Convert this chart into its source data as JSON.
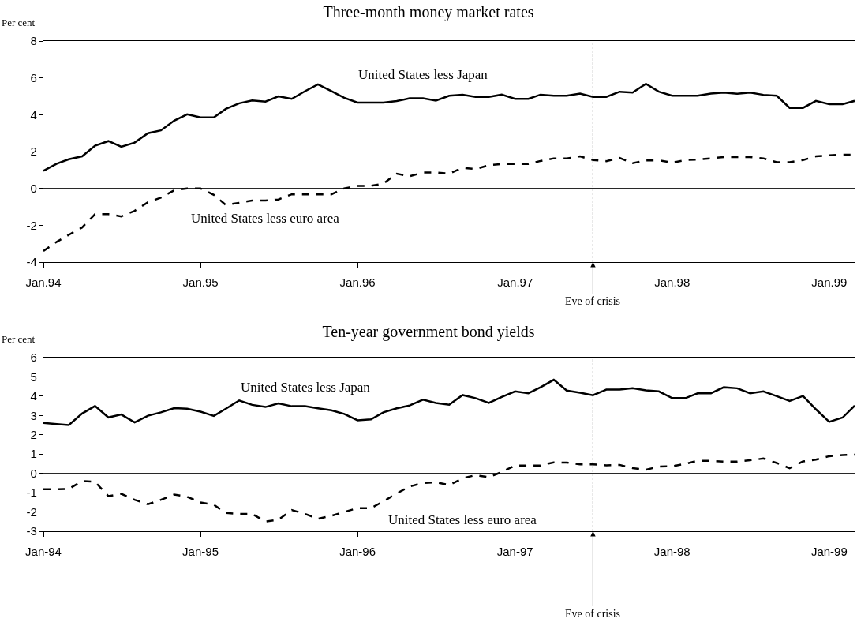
{
  "chart_data": [
    {
      "type": "line",
      "title": "Three-month money market rates",
      "ylabel": "Per cent",
      "x": [
        "1994-01",
        "1994-02",
        "1994-03",
        "1994-04",
        "1994-05",
        "1994-06",
        "1994-07",
        "1994-08",
        "1994-09",
        "1994-10",
        "1994-11",
        "1994-12",
        "1995-01",
        "1995-02",
        "1995-03",
        "1995-04",
        "1995-05",
        "1995-06",
        "1995-07",
        "1995-08",
        "1995-09",
        "1995-10",
        "1995-11",
        "1995-12",
        "1996-01",
        "1996-02",
        "1996-03",
        "1996-04",
        "1996-05",
        "1996-06",
        "1996-07",
        "1996-08",
        "1996-09",
        "1996-10",
        "1996-11",
        "1996-12",
        "1997-01",
        "1997-02",
        "1997-03",
        "1997-04",
        "1997-05",
        "1997-06",
        "1997-07",
        "1997-08",
        "1997-09",
        "1997-10",
        "1997-11",
        "1997-12",
        "1998-01",
        "1998-02",
        "1998-03",
        "1998-04",
        "1998-05",
        "1998-06",
        "1998-07",
        "1998-08",
        "1998-09",
        "1998-10",
        "1998-11",
        "1998-12",
        "1999-01",
        "1999-02",
        "1999-03"
      ],
      "series": [
        {
          "name": "United States less Japan",
          "color": "#000000",
          "line_style": "solid",
          "values": [
            0.95,
            1.34,
            1.58,
            1.74,
            2.32,
            2.57,
            2.26,
            2.49,
            3.0,
            3.15,
            3.68,
            4.02,
            3.85,
            3.85,
            4.32,
            4.62,
            4.77,
            4.71,
            5.0,
            4.86,
            5.28,
            5.65,
            5.28,
            4.92,
            4.66,
            4.66,
            4.66,
            4.74,
            4.89,
            4.89,
            4.77,
            5.03,
            5.09,
            4.97,
            4.97,
            5.09,
            4.86,
            4.86,
            5.09,
            5.03,
            5.03,
            5.15,
            4.97,
            4.97,
            5.25,
            5.2,
            5.68,
            5.25,
            5.03,
            5.03,
            5.03,
            5.15,
            5.2,
            5.14,
            5.2,
            5.08,
            5.03,
            4.37,
            4.37,
            4.75,
            4.57,
            4.57,
            4.75
          ]
        },
        {
          "name": "United States less euro area",
          "color": "#000000",
          "line_style": "dashed",
          "values": [
            -3.4,
            -2.9,
            -2.52,
            -2.12,
            -1.4,
            -1.4,
            -1.52,
            -1.22,
            -0.75,
            -0.5,
            -0.1,
            0,
            0,
            -0.35,
            -0.9,
            -0.78,
            -0.66,
            -0.66,
            -0.6,
            -0.32,
            -0.32,
            -0.32,
            -0.32,
            0,
            0.14,
            0.14,
            0.26,
            0.8,
            0.66,
            0.86,
            0.86,
            0.8,
            1.12,
            1.05,
            1.26,
            1.32,
            1.32,
            1.32,
            1.49,
            1.63,
            1.63,
            1.74,
            1.54,
            1.48,
            1.65,
            1.37,
            1.52,
            1.52,
            1.4,
            1.54,
            1.57,
            1.63,
            1.7,
            1.7,
            1.7,
            1.63,
            1.42,
            1.42,
            1.54,
            1.74,
            1.8,
            1.83,
            1.83
          ]
        }
      ],
      "xlim": [
        "1994-01",
        "1999-03"
      ],
      "xticks": [
        {
          "value": "1994-01",
          "label": "Jan.94"
        },
        {
          "value": "1995-01",
          "label": "Jan.95"
        },
        {
          "value": "1996-01",
          "label": "Jan.96"
        },
        {
          "value": "1997-01",
          "label": "Jan.97"
        },
        {
          "value": "1998-01",
          "label": "Jan.98"
        },
        {
          "value": "1999-01",
          "label": "Jan.99"
        }
      ],
      "ylim": [
        -4,
        8
      ],
      "yticks": [
        -4,
        -2,
        0,
        2,
        4,
        6,
        8
      ],
      "ref_lines": [
        {
          "axis": "x",
          "value": "1997-07-01",
          "label": "Eve of crisis",
          "line_style": "dashed",
          "color": "#000000"
        },
        {
          "axis": "y",
          "value": 0,
          "color": "#000000",
          "line_style": "solid"
        }
      ],
      "grid": false,
      "legend": false,
      "marker": "none"
    },
    {
      "type": "line",
      "title": "Ten-year government bond yields",
      "ylabel": "Per cent",
      "x": [
        "1994-01",
        "1994-02",
        "1994-03",
        "1994-04",
        "1994-05",
        "1994-06",
        "1994-07",
        "1994-08",
        "1994-09",
        "1994-10",
        "1994-11",
        "1994-12",
        "1995-01",
        "1995-02",
        "1995-03",
        "1995-04",
        "1995-05",
        "1995-06",
        "1995-07",
        "1995-08",
        "1995-09",
        "1995-10",
        "1995-11",
        "1995-12",
        "1996-01",
        "1996-02",
        "1996-03",
        "1996-04",
        "1996-05",
        "1996-06",
        "1996-07",
        "1996-08",
        "1996-09",
        "1996-10",
        "1996-11",
        "1996-12",
        "1997-01",
        "1997-02",
        "1997-03",
        "1997-04",
        "1997-05",
        "1997-06",
        "1997-07",
        "1997-08",
        "1997-09",
        "1997-10",
        "1997-11",
        "1997-12",
        "1998-01",
        "1998-02",
        "1998-03",
        "1998-04",
        "1998-05",
        "1998-06",
        "1998-07",
        "1998-08",
        "1998-09",
        "1998-10",
        "1998-11",
        "1998-12",
        "1999-01",
        "1999-02",
        "1999-03"
      ],
      "series": [
        {
          "name": "United States less Japan",
          "color": "#000000",
          "line_style": "solid",
          "values": [
            2.61,
            2.55,
            2.5,
            3.1,
            3.49,
            2.9,
            3.05,
            2.64,
            2.99,
            3.16,
            3.38,
            3.35,
            3.2,
            2.98,
            3.35,
            3.78,
            3.55,
            3.44,
            3.63,
            3.48,
            3.48,
            3.37,
            3.27,
            3.08,
            2.75,
            2.8,
            3.16,
            3.37,
            3.52,
            3.82,
            3.65,
            3.56,
            4.06,
            3.9,
            3.65,
            3.96,
            4.25,
            4.15,
            4.46,
            4.85,
            4.29,
            4.18,
            4.05,
            4.34,
            4.34,
            4.41,
            4.3,
            4.25,
            3.9,
            3.9,
            4.15,
            4.15,
            4.46,
            4.41,
            4.15,
            4.25,
            4.0,
            3.75,
            4.01,
            3.32,
            2.67,
            2.89,
            3.51
          ]
        },
        {
          "name": "United States less euro area",
          "color": "#000000",
          "line_style": "dashed",
          "values": [
            -0.82,
            -0.82,
            -0.8,
            -0.4,
            -0.44,
            -1.18,
            -1.06,
            -1.37,
            -1.6,
            -1.37,
            -1.1,
            -1.21,
            -1.51,
            -1.63,
            -2.05,
            -2.1,
            -2.1,
            -2.5,
            -2.4,
            -1.9,
            -2.1,
            -2.35,
            -2.2,
            -2.0,
            -1.8,
            -1.8,
            -1.45,
            -1.04,
            -0.68,
            -0.5,
            -0.46,
            -0.6,
            -0.26,
            -0.09,
            -0.2,
            0.07,
            0.41,
            0.41,
            0.41,
            0.57,
            0.56,
            0.47,
            0.47,
            0.42,
            0.44,
            0.27,
            0.19,
            0.35,
            0.37,
            0.5,
            0.65,
            0.65,
            0.61,
            0.61,
            0.68,
            0.77,
            0.54,
            0.27,
            0.62,
            0.71,
            0.89,
            0.95,
            0.97
          ]
        }
      ],
      "xlim": [
        "1994-01",
        "1999-03"
      ],
      "xticks": [
        {
          "value": "1994-01",
          "label": "Jan-94"
        },
        {
          "value": "1995-01",
          "label": "Jan-95"
        },
        {
          "value": "1996-01",
          "label": "Jan-96"
        },
        {
          "value": "1997-01",
          "label": "Jan-97"
        },
        {
          "value": "1998-01",
          "label": "Jan-98"
        },
        {
          "value": "1999-01",
          "label": "Jan-99"
        }
      ],
      "ylim": [
        -3,
        6
      ],
      "yticks": [
        -3,
        -2,
        -1,
        0,
        1,
        2,
        3,
        4,
        5,
        6
      ],
      "ref_lines": [
        {
          "axis": "x",
          "value": "1997-07-01",
          "label": "Eve of crisis",
          "line_style": "dashed",
          "color": "#000000"
        },
        {
          "axis": "y",
          "value": 0,
          "color": "#000000",
          "line_style": "solid"
        }
      ],
      "grid": false,
      "legend": false,
      "marker": "none"
    }
  ]
}
